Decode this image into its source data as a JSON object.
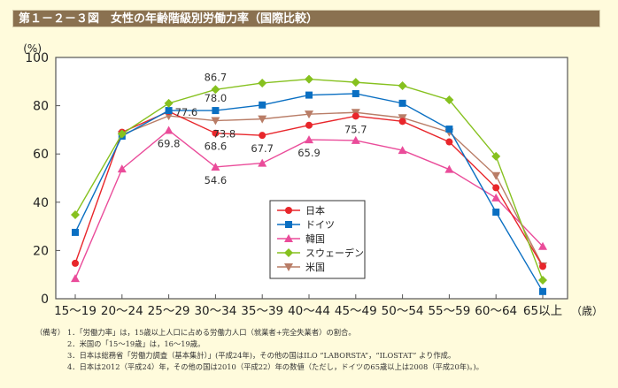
{
  "title": "第１－２－３図　女性の年齢階級別労働力率（国際比較）",
  "chart_data": {
    "type": "line",
    "ylabel": "(%)",
    "xunit": "（歳）",
    "ylim": [
      0,
      100
    ],
    "yticks": [
      0,
      20,
      40,
      60,
      80,
      100
    ],
    "categories": [
      "15～19",
      "20～24",
      "25～29",
      "30～34",
      "35～39",
      "40～44",
      "45～49",
      "50～54",
      "55～59",
      "60～64",
      "65以上"
    ],
    "legend_position": "center-right",
    "series": [
      {
        "name": "日本",
        "color": "#e8262b",
        "marker": "circle",
        "values": [
          14.7,
          69.0,
          77.6,
          68.6,
          67.7,
          71.9,
          75.7,
          73.5,
          65.0,
          46.0,
          13.4
        ]
      },
      {
        "name": "ドイツ",
        "color": "#0a6fc2",
        "marker": "square",
        "values": [
          27.5,
          67.4,
          78.0,
          78.0,
          80.3,
          84.4,
          85.0,
          81.0,
          70.3,
          35.9,
          3.0
        ]
      },
      {
        "name": "韓国",
        "color": "#ea4c9a",
        "marker": "triangle-up",
        "values": [
          8.4,
          53.8,
          69.8,
          54.6,
          56.2,
          65.9,
          65.6,
          61.5,
          53.6,
          41.8,
          21.7
        ]
      },
      {
        "name": "スウェーデン",
        "color": "#86c11f",
        "marker": "diamond",
        "values": [
          34.8,
          68.3,
          81.0,
          86.7,
          89.4,
          91.0,
          89.7,
          88.3,
          82.4,
          59.0,
          7.7
        ]
      },
      {
        "name": "米国",
        "color": "#b97d67",
        "marker": "triangle-down",
        "values": [
          null,
          68.0,
          75.8,
          73.8,
          74.5,
          76.5,
          77.2,
          75.0,
          69.0,
          51.0,
          13.6
        ]
      }
    ],
    "annotations": [
      {
        "text": "86.7",
        "series": 3,
        "index": 3,
        "pos": "above"
      },
      {
        "text": "78.0",
        "series": 1,
        "index": 3,
        "pos": "above"
      },
      {
        "text": "77.6",
        "series": 0,
        "index": 2,
        "pos": "right"
      },
      {
        "text": "73.8",
        "series": 4,
        "index": 3,
        "pos": "below"
      },
      {
        "text": "69.8",
        "series": 2,
        "index": 2,
        "pos": "below"
      },
      {
        "text": "68.6",
        "series": 0,
        "index": 3,
        "pos": "below"
      },
      {
        "text": "67.7",
        "series": 0,
        "index": 4,
        "pos": "below"
      },
      {
        "text": "65.9",
        "series": 2,
        "index": 5,
        "pos": "below"
      },
      {
        "text": "54.6",
        "series": 2,
        "index": 3,
        "pos": "below"
      },
      {
        "text": "75.7",
        "series": 0,
        "index": 6,
        "pos": "below"
      }
    ]
  },
  "notes": {
    "header": "（備考）",
    "lines": [
      "1．「労働力率」は，15歳以上人口に占める労働力人口（就業者+完全失業者）の割合。",
      "2．米国の「15～19歳」は，16～19歳。",
      "3．日本は総務省「労働力調査（基本集計）」(平成24年)，その他の国はILO “LABORSTA”，“ILOSTAT” より作成。",
      "4．日本は2012（平成24）年，その他の国は2010（平成22）年の数値（ただし，ドイツの65歳以上は2008（平成20年)。)。"
    ]
  }
}
